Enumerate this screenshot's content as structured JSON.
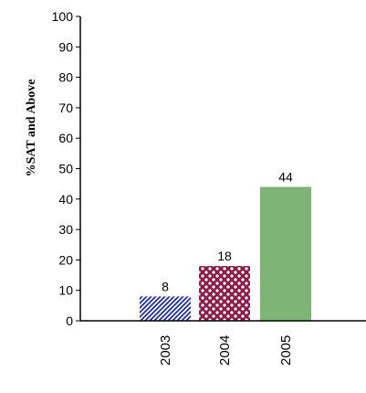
{
  "chart_data": {
    "type": "bar",
    "ylabel": "%SAT and Above",
    "xlabel": "",
    "ylim": [
      0,
      100
    ],
    "yticks": [
      0,
      10,
      20,
      30,
      40,
      50,
      60,
      70,
      80,
      90,
      100
    ],
    "categories": [
      "2003",
      "2004",
      "2005"
    ],
    "values": [
      8,
      18,
      44
    ],
    "data_labels": [
      "8",
      "18",
      "44"
    ],
    "grid": false,
    "legend": "none",
    "bar_styles": [
      {
        "pattern": "diagonal-stripes",
        "color": "#1a2a9c",
        "background": "#ffffff"
      },
      {
        "pattern": "dots",
        "color": "#8a1e4a",
        "background": "#ffffff"
      },
      {
        "pattern": "solid",
        "color": "#7db575"
      }
    ]
  }
}
